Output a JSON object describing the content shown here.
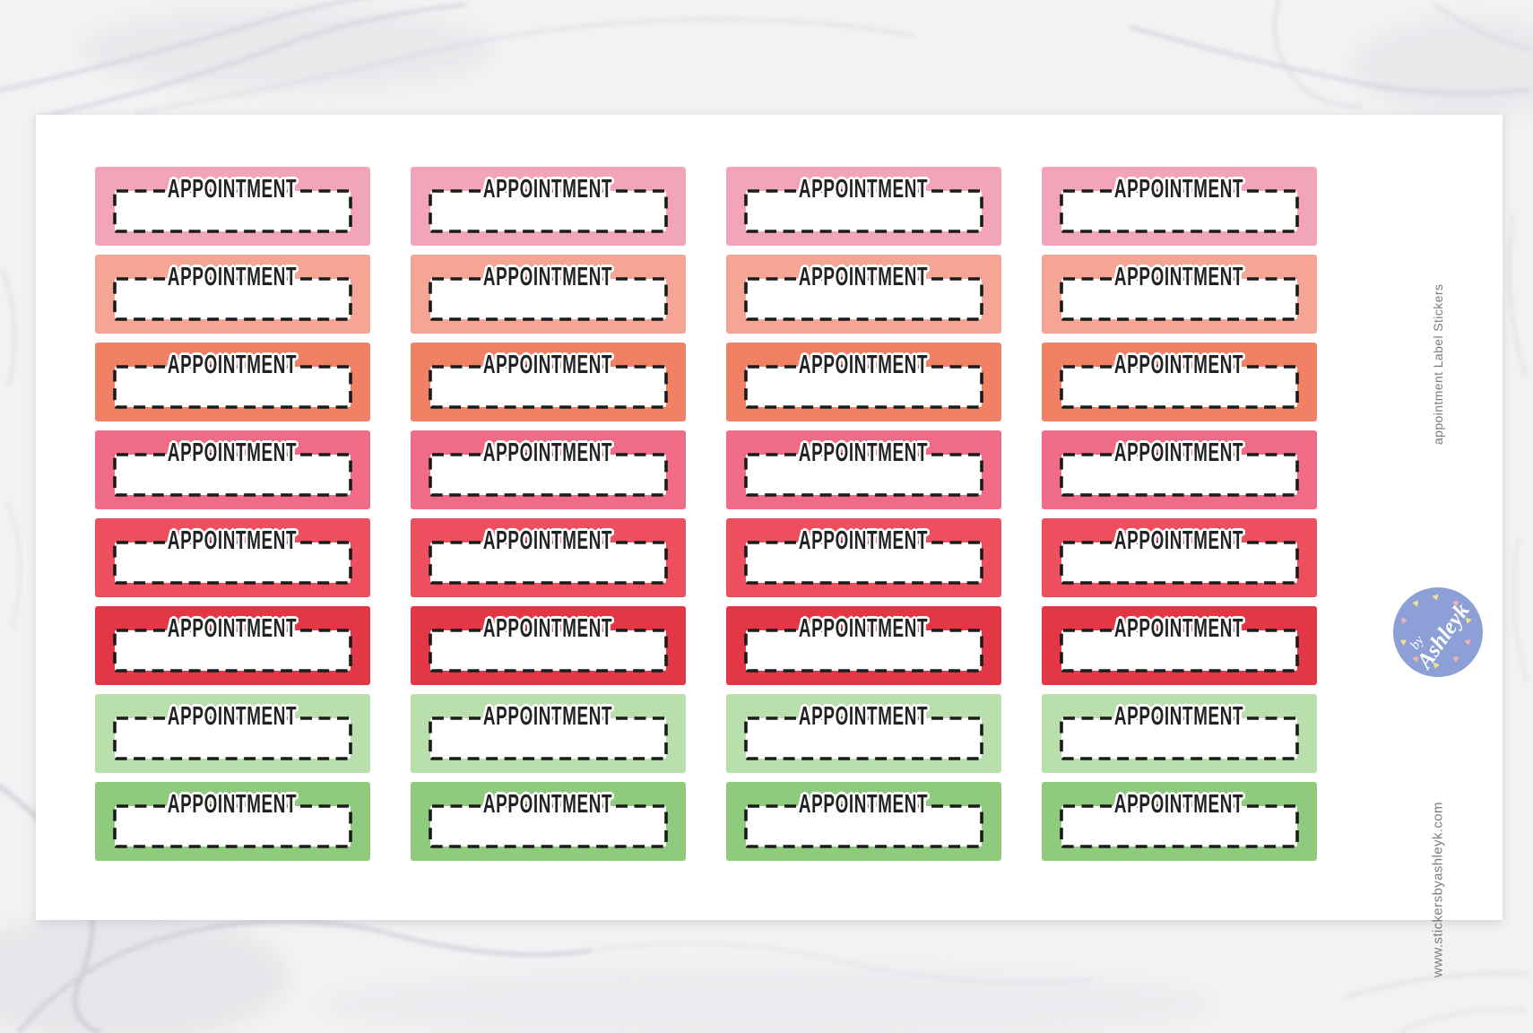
{
  "page": {
    "background_color": "#F2F2F4",
    "background_texture": "white-marble"
  },
  "product": {
    "sticker_label": "APPOINTMENT",
    "side_title": "appointment Label Stickers",
    "website": "www.stickersbyashleyk.com",
    "side_text_color": "#7B7B7B"
  },
  "sheet": {
    "background_color": "#FFFFFF",
    "columns": 4,
    "rows": [
      {
        "name": "pink",
        "color": "#F2A4B8"
      },
      {
        "name": "salmon",
        "color": "#F5A593"
      },
      {
        "name": "coral",
        "color": "#F18165"
      },
      {
        "name": "rose",
        "color": "#F06C86"
      },
      {
        "name": "red",
        "color": "#EE4F5F"
      },
      {
        "name": "dark-red",
        "color": "#E43746"
      },
      {
        "name": "light-green",
        "color": "#B9DFAC"
      },
      {
        "name": "green",
        "color": "#8FCB7D"
      }
    ],
    "label_text_color": "#222222",
    "dash_color": "#1B1B1B",
    "box_fill": "#FFFFFF"
  },
  "logo": {
    "line1": "by",
    "line2": "Ashleyk",
    "circle_color": "#8C9FD6",
    "text_color": "#FFFFFF",
    "hearts": [
      {
        "color": "#F6DF8E"
      },
      {
        "color": "#F4B3A8"
      },
      {
        "color": "#F6DF8E"
      },
      {
        "color": "#F4B3A8"
      },
      {
        "color": "#F4B3A8"
      },
      {
        "color": "#F6DF8E"
      },
      {
        "color": "#F4B3A8"
      },
      {
        "color": "#F6DF8E"
      },
      {
        "color": "#F4B3A8"
      },
      {
        "color": "#F6DF8E"
      }
    ]
  }
}
